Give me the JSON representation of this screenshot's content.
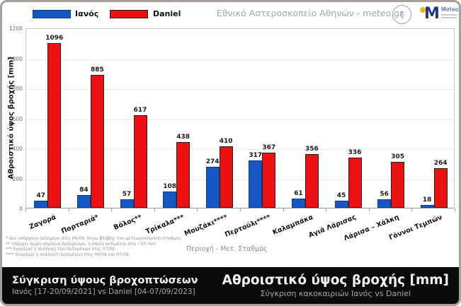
{
  "header": {
    "org_title": "Εθνικό Αστεροσκοπείο Αθηνών - meteo.gr",
    "legend": [
      {
        "label": "Ιανός",
        "color": "#1358C5",
        "border": "#0b3a8c"
      },
      {
        "label": "Daniel",
        "color": "#EE1111",
        "border": "#222222"
      }
    ],
    "meteo_logo": {
      "name": "Meteo",
      "m_color": "#20368c",
      "dot_color": "#f2b705"
    }
  },
  "chart_data": {
    "type": "bar",
    "title": "",
    "categories": [
      "Ζαγορά",
      "Πορταριά*",
      "Βόλος**",
      "Τρίκαλα***",
      "Μουζάκι****",
      "Περτούλι****",
      "Καλαμπάκα",
      "Αγιά Λάρισας",
      "Λάρισα – Χάλκη",
      "Γόννοι Τεμπών"
    ],
    "series": [
      {
        "name": "Ιανός",
        "color": "#1358C5",
        "border": "#0b3a8c",
        "values": [
          47,
          84,
          57,
          108,
          274,
          317,
          61,
          45,
          56,
          18
        ]
      },
      {
        "name": "Daniel",
        "color": "#EE1111",
        "border": "#222222",
        "values": [
          1096,
          885,
          617,
          438,
          410,
          367,
          356,
          336,
          305,
          264
        ]
      }
    ],
    "xlabel": "Περιοχή - Μετ. Σταθμός",
    "ylabel": "Αθροιστικό ύψος βροχής [mm]",
    "ylim": [
      0,
      1200
    ],
    "ytick_step": 200,
    "grid": true,
    "legend_position": "top-left"
  },
  "footnotes": [
    "* Δεν υπάρχουν δεδομένα στις 06/09, λόγω βλάβης του μετεωρολογικού σταθμού.",
    "** Υπάρχει 3ωρη απώλεια δεδομένων, η οποία εκτιμάται στα ~50 mm.",
    "*** Εκκρεμεί η συλλογή των δεδομένων στις 07/09.",
    "**** Εκκρεμεί η συλλογή δεδομένων στις 06/09 και 07/09."
  ],
  "footer": {
    "left_title": "Σύγκριση ύψους βροχοπτώσεων",
    "left_subtitle": "Ιανός [17-20/09/2021] vs Daniel [04-07/09/2023]",
    "right_title": "Αθροιστικό ύψος βροχής [mm]",
    "right_subtitle": "Σύγκριση κακοκαιριών Ιανός vs Daniel"
  }
}
